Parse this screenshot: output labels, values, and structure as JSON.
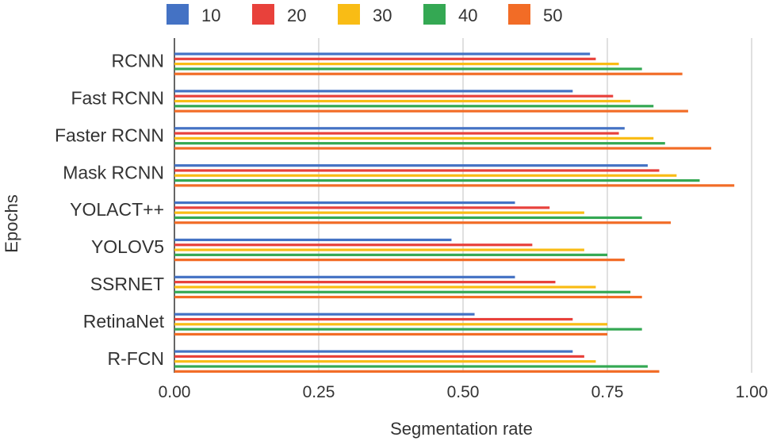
{
  "chart_data": {
    "type": "bar",
    "orientation": "horizontal",
    "xlabel": "Segmentation rate",
    "ylabel": "Epochs",
    "xlim": [
      0,
      1
    ],
    "xticks": [
      "0.00",
      "0.25",
      "0.50",
      "0.75",
      "1.00"
    ],
    "grid": true,
    "legend_position": "top",
    "categories": [
      "RCNN",
      "Fast RCNN",
      "Faster RCNN",
      "Mask RCNN",
      "YOLACT++",
      "YOLOV5",
      "SSRNET",
      "RetinaNet",
      "R-FCN"
    ],
    "series": [
      {
        "name": "10",
        "color": "#4472c4",
        "values": [
          0.72,
          0.69,
          0.78,
          0.82,
          0.59,
          0.48,
          0.59,
          0.52,
          0.69
        ]
      },
      {
        "name": "20",
        "color": "#e8413b",
        "values": [
          0.73,
          0.76,
          0.77,
          0.84,
          0.65,
          0.62,
          0.66,
          0.69,
          0.71
        ]
      },
      {
        "name": "30",
        "color": "#f9bc15",
        "values": [
          0.77,
          0.79,
          0.83,
          0.87,
          0.71,
          0.71,
          0.73,
          0.75,
          0.73
        ]
      },
      {
        "name": "40",
        "color": "#34a853",
        "values": [
          0.81,
          0.83,
          0.85,
          0.91,
          0.81,
          0.75,
          0.79,
          0.81,
          0.82
        ]
      },
      {
        "name": "50",
        "color": "#f26c26",
        "values": [
          0.88,
          0.89,
          0.93,
          0.97,
          0.86,
          0.78,
          0.81,
          0.75,
          0.84
        ]
      }
    ]
  }
}
